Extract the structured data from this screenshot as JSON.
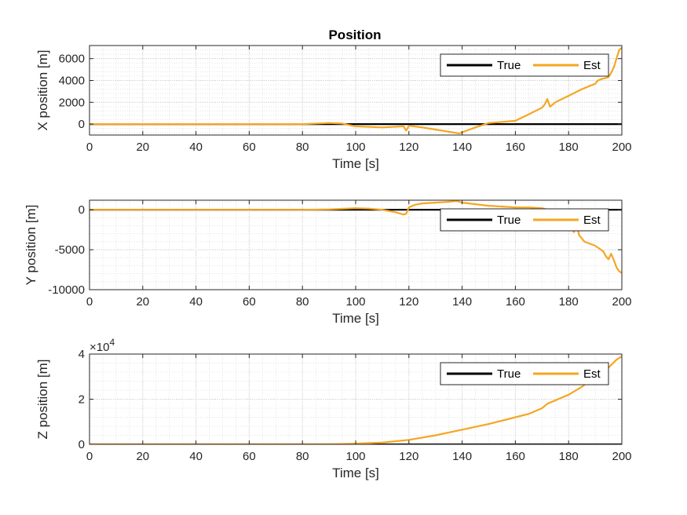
{
  "figure": {
    "title": "Position"
  },
  "chart_data": [
    {
      "type": "line",
      "title": "Position",
      "xlabel": "Time [s]",
      "ylabel": "X position [m]",
      "xlim": [
        0,
        200
      ],
      "ylim": [
        -1000,
        7200
      ],
      "xticks": [
        0,
        20,
        40,
        60,
        80,
        100,
        120,
        140,
        160,
        180,
        200
      ],
      "yticks": [
        0,
        2000,
        4000,
        6000
      ],
      "ytick_labels": [
        "0",
        "2000",
        "4000",
        "6000"
      ],
      "grid": true,
      "minor_grid": true,
      "legend": {
        "placement": "top-right",
        "entries": [
          "True",
          "Est"
        ]
      },
      "series": [
        {
          "name": "True",
          "color": "#000000",
          "x": [
            0,
            200
          ],
          "y": [
            0,
            0
          ]
        },
        {
          "name": "Est",
          "color": "#f5a623",
          "x": [
            0,
            80,
            90,
            95,
            100,
            110,
            118,
            119,
            120,
            125,
            130,
            135,
            139,
            140,
            145,
            150,
            155,
            160,
            165,
            170,
            171,
            172,
            173,
            175,
            180,
            185,
            190,
            191,
            192,
            195,
            196,
            197,
            198,
            199,
            200
          ],
          "y": [
            0,
            0,
            100,
            50,
            -200,
            -300,
            -200,
            -600,
            -150,
            -300,
            -500,
            -700,
            -850,
            -750,
            -300,
            100,
            200,
            300,
            900,
            1500,
            1800,
            2300,
            1600,
            2000,
            2600,
            3200,
            3700,
            4000,
            4100,
            4300,
            4700,
            5200,
            6000,
            6800,
            7000
          ]
        }
      ]
    },
    {
      "type": "line",
      "xlabel": "Time [s]",
      "ylabel": "Y position [m]",
      "xlim": [
        0,
        200
      ],
      "ylim": [
        -10000,
        1200
      ],
      "xticks": [
        0,
        20,
        40,
        60,
        80,
        100,
        120,
        140,
        160,
        180,
        200
      ],
      "yticks": [
        -10000,
        -5000,
        0
      ],
      "ytick_labels": [
        "-10000",
        "-5000",
        "0"
      ],
      "grid": true,
      "minor_grid": true,
      "legend": {
        "placement": "top-right",
        "entries": [
          "True",
          "Est"
        ]
      },
      "series": [
        {
          "name": "True",
          "color": "#000000",
          "x": [
            0,
            200
          ],
          "y": [
            0,
            0
          ]
        },
        {
          "name": "Est",
          "color": "#f5a623",
          "x": [
            0,
            80,
            90,
            100,
            105,
            110,
            115,
            118,
            119,
            120,
            122,
            125,
            130,
            135,
            138,
            140,
            145,
            150,
            155,
            160,
            165,
            170,
            175,
            180,
            182,
            183,
            184,
            186,
            190,
            193,
            194,
            195,
            196,
            197,
            198,
            199,
            200
          ],
          "y": [
            0,
            0,
            50,
            200,
            150,
            0,
            -300,
            -600,
            -500,
            300,
            600,
            800,
            900,
            1000,
            1100,
            900,
            700,
            500,
            400,
            300,
            300,
            200,
            -200,
            -1500,
            -2800,
            -2000,
            -3200,
            -4000,
            -4500,
            -5200,
            -5800,
            -6200,
            -5500,
            -6300,
            -7200,
            -7700,
            -7900
          ]
        }
      ]
    },
    {
      "type": "line",
      "xlabel": "Time [s]",
      "ylabel": "Z position [m]",
      "xlim": [
        0,
        200
      ],
      "ylim": [
        0,
        40000
      ],
      "xticks": [
        0,
        20,
        40,
        60,
        80,
        100,
        120,
        140,
        160,
        180,
        200
      ],
      "yticks": [
        0,
        20000,
        40000
      ],
      "ytick_labels": [
        "0",
        "2",
        "4"
      ],
      "scale_exponent": {
        "base": "×10",
        "exp": "4"
      },
      "grid": true,
      "minor_grid": true,
      "legend": {
        "placement": "top-right",
        "entries": [
          "True",
          "Est"
        ]
      },
      "series": [
        {
          "name": "True",
          "color": "#000000",
          "x": [
            0,
            200
          ],
          "y": [
            0,
            0
          ]
        },
        {
          "name": "Est",
          "color": "#f5a623",
          "x": [
            0,
            90,
            100,
            110,
            120,
            130,
            140,
            150,
            160,
            165,
            170,
            172,
            180,
            185,
            190,
            195,
            198,
            200
          ],
          "y": [
            0,
            0,
            300,
            800,
            2000,
            4000,
            6500,
            9000,
            12000,
            13500,
            16000,
            18000,
            22000,
            25500,
            30000,
            34000,
            37500,
            39000
          ]
        }
      ]
    }
  ]
}
